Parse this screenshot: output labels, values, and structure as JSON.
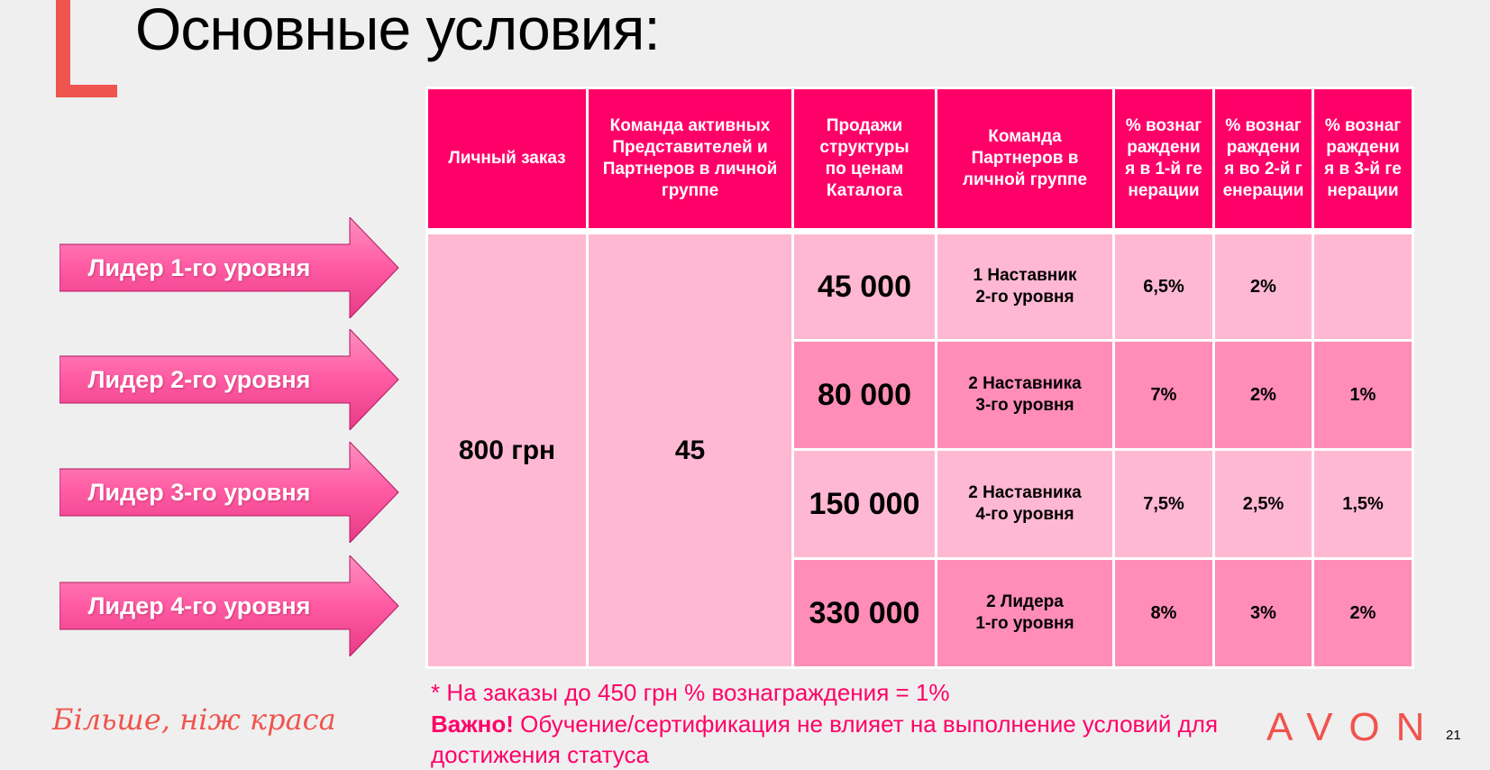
{
  "slide": {
    "title": "Основные условия:",
    "page_number": "21"
  },
  "arrows": [
    "Лидер 1-го уровня",
    "Лидер 2-го уровня",
    "Лидер 3-го уровня",
    "Лидер 4-го уровня"
  ],
  "table": {
    "headers": [
      "Личный заказ",
      "Команда активных Представителей и Партнеров в личной группе",
      "Продажи структуры по ценам Каталога",
      "Команда Партнеров в личной группе",
      "% вознаграждения в 1-й генерации",
      "% вознаграждения во 2-й генерации",
      "% вознаграждения в 3-й генерации"
    ],
    "personal_order": "800 грн",
    "team_active": "45",
    "rows": [
      {
        "sales": "45 000",
        "partners_line1": "1 Наставник",
        "partners_line2": "2-го уровня",
        "p1": "6,5%",
        "p2": "2%",
        "p3": ""
      },
      {
        "sales": "80 000",
        "partners_line1": "2 Наставника",
        "partners_line2": "3-го уровня",
        "p1": "7%",
        "p2": "2%",
        "p3": "1%"
      },
      {
        "sales": "150 000",
        "partners_line1": "2 Наставника",
        "partners_line2": "4-го уровня",
        "p1": "7,5%",
        "p2": "2,5%",
        "p3": "1,5%"
      },
      {
        "sales": "330 000",
        "partners_line1": "2 Лидера",
        "partners_line2": "1-го уровня",
        "p1": "8%",
        "p2": "3%",
        "p3": "2%"
      }
    ]
  },
  "footer": {
    "note": "* На заказы до 450 грн % вознаграждения = 1%",
    "important_label": "Важно!",
    "important_text": " Обучение/сертификация не влияет на выполнение условий для достижения статуса",
    "slogan": "Більше, ніж краса",
    "brand": "AVON"
  },
  "colors": {
    "header_pink": "#ff0068",
    "cell_light": "#ffb8d2",
    "cell_dark": "#ff8db6",
    "accent_coral": "#f0544e"
  }
}
